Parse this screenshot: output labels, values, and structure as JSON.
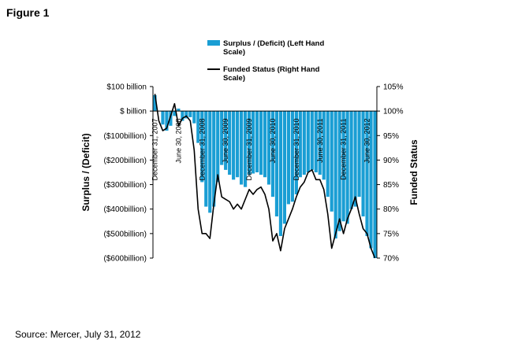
{
  "page": {
    "figure_title": "Figure 1",
    "source": "Source: Mercer, July 31, 2012"
  },
  "chart_data": {
    "type": "bar",
    "title": "",
    "xlabel": "",
    "ylabel": "Surplus / (Deficit)",
    "ylabel_right": "Funded Status",
    "ylim": [
      -600,
      100
    ],
    "ylim_right": [
      70,
      105
    ],
    "grid": false,
    "legend_position": "top-center",
    "colors": {
      "bars": "#1a9ed4",
      "line": "#000000"
    },
    "left_axis_ticks": [
      "$100 billion",
      "$ billion",
      "($100billion)",
      "($200billion)",
      "($300billion)",
      "($400billion)",
      "($500billion)",
      "($600billion)"
    ],
    "left_axis_tick_values": [
      100,
      0,
      -100,
      -200,
      -300,
      -400,
      -500,
      -600
    ],
    "right_axis_ticks": [
      "105%",
      "100%",
      "95%",
      "90%",
      "85%",
      "80%",
      "75%",
      "70%"
    ],
    "right_axis_tick_values": [
      105,
      100,
      95,
      90,
      85,
      80,
      75,
      70
    ],
    "x_labels": [
      {
        "index": 0,
        "text": "December 31, 2007"
      },
      {
        "index": 6,
        "text": "June 30, 2008"
      },
      {
        "index": 12,
        "text": "December 31, 2008"
      },
      {
        "index": 18,
        "text": "June 30, 2009"
      },
      {
        "index": 24,
        "text": "December 31, 2009"
      },
      {
        "index": 30,
        "text": "June 30, 2010"
      },
      {
        "index": 36,
        "text": "December 31, 2010"
      },
      {
        "index": 42,
        "text": "June 30, 2011"
      },
      {
        "index": 48,
        "text": "December 31, 2011"
      },
      {
        "index": 54,
        "text": "June 30, 2012"
      }
    ],
    "series": [
      {
        "name": "Surplus / (Deficit) (Left Hand Scale)",
        "axis": "left",
        "type": "bar",
        "values": [
          65,
          0,
          -55,
          -80,
          -60,
          -20,
          10,
          -40,
          -30,
          -25,
          -50,
          -130,
          -290,
          -390,
          -415,
          -390,
          -290,
          -220,
          -240,
          -260,
          -280,
          -270,
          -300,
          -310,
          -260,
          -255,
          -250,
          -260,
          -270,
          -300,
          -350,
          -430,
          -510,
          -460,
          -380,
          -370,
          -340,
          -270,
          -260,
          -250,
          -240,
          -250,
          -260,
          -280,
          -350,
          -410,
          -520,
          -490,
          -450,
          -460,
          -400,
          -390,
          -350,
          -430,
          -510,
          -560,
          -600
        ]
      },
      {
        "name": "Funded Status (Right Hand Scale)",
        "axis": "right",
        "type": "line",
        "values": [
          103.5,
          98,
          96,
          96.5,
          99,
          101.5,
          97,
          98.5,
          99,
          98,
          92,
          80,
          75,
          75,
          74,
          81,
          87,
          82.5,
          82,
          81.5,
          80,
          81,
          80,
          82,
          84,
          83,
          84,
          84.5,
          83,
          80,
          73.5,
          75,
          71.5,
          76,
          78,
          80,
          82.5,
          84.5,
          85.5,
          87.5,
          88,
          86,
          86,
          84,
          79,
          72,
          75,
          78,
          75,
          78,
          80,
          82.5,
          79,
          76,
          75,
          72,
          70
        ]
      }
    ]
  }
}
